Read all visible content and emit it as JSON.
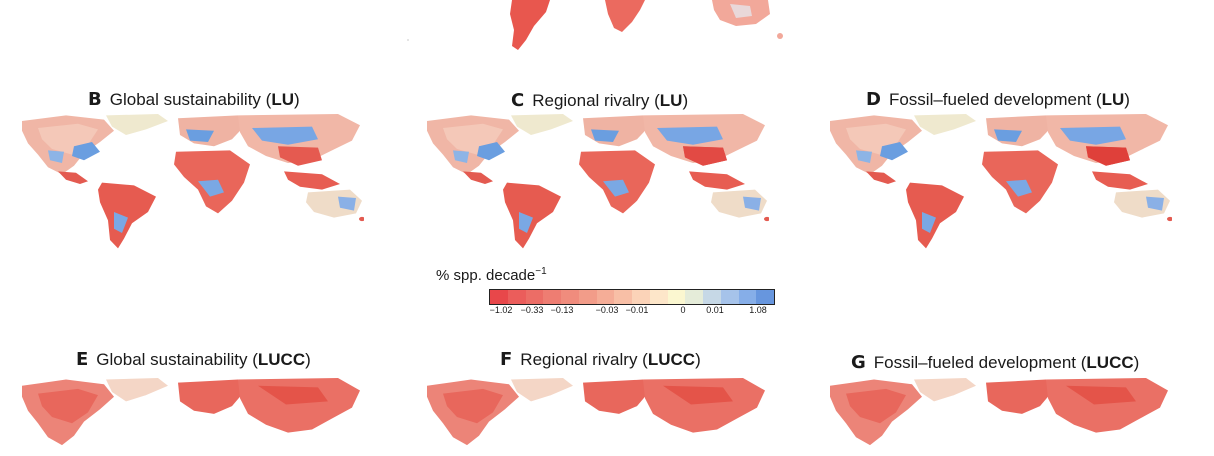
{
  "panels": {
    "B": {
      "letter": "B",
      "label": "Global sustainability (",
      "bold": "LU",
      "close": ")"
    },
    "C": {
      "letter": "C",
      "label": "Regional rivalry (",
      "bold": "LU",
      "close": ")"
    },
    "D": {
      "letter": "D",
      "label": "Fossil–fueled development (",
      "bold": "LU",
      "close": ")"
    },
    "E": {
      "letter": "E",
      "label": "Global sustainability (",
      "bold": "LUCC",
      "close": ")"
    },
    "F": {
      "letter": "F",
      "label": "Regional rivalry (",
      "bold": "LUCC",
      "close": ")"
    },
    "G": {
      "letter": "G",
      "label": "Fossil–fueled development (",
      "bold": "LUCC",
      "close": ")"
    }
  },
  "legend": {
    "title": "% spp. decade",
    "title_sup": "−1",
    "ticks": [
      "−1.02",
      "−0.33",
      "−0.13",
      "−0.03",
      "−0.01",
      "0",
      "0.01",
      "1.08"
    ],
    "colors": [
      "#e8474a",
      "#eb5d5b",
      "#ec6d66",
      "#ee7d72",
      "#f08c7d",
      "#f29c89",
      "#f5ad97",
      "#f8bfa6",
      "#fbd3b8",
      "#fde6c9",
      "#fbf7d0",
      "#e5ecd9",
      "#c6d8e6",
      "#a6c3ea",
      "#86aee8",
      "#6796de"
    ]
  },
  "scale_colors": {
    "decline_strong": "#e3463f",
    "decline_weak": "#f4b9a6",
    "neutral": "#f4eed0",
    "increase": "#5b93dc"
  }
}
